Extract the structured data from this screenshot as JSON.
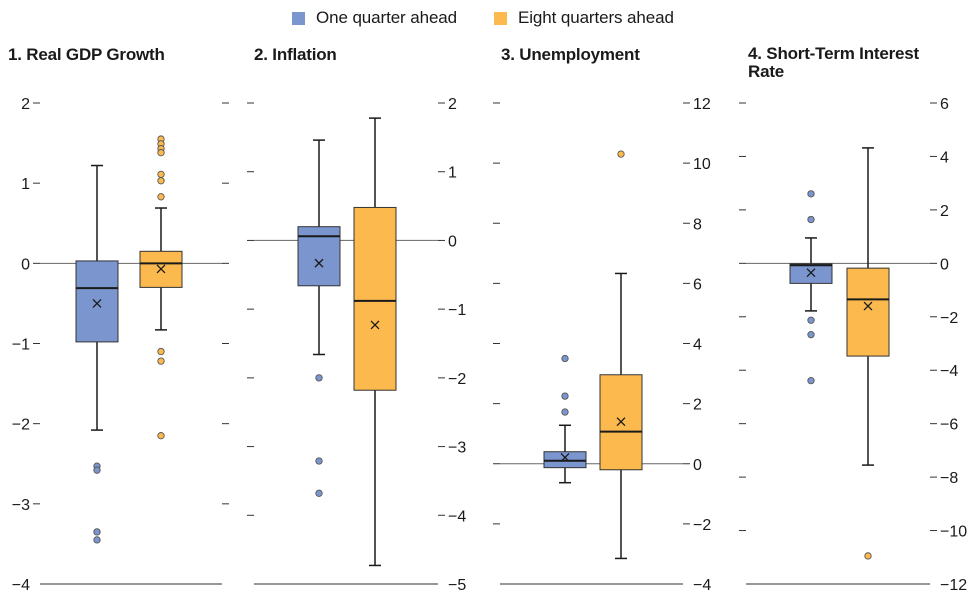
{
  "legend": [
    {
      "label": "One quarter ahead",
      "color": "#7b95cf"
    },
    {
      "label": "Eight quarters ahead",
      "color": "#fcba4e"
    }
  ],
  "colors": {
    "one_quarter": "#7b95cf",
    "eight_quarters": "#fcba4e",
    "axis": "#333333",
    "zero_line": "#666666"
  },
  "chart_data": [
    {
      "type": "box",
      "title": "1. Real GDP Growth",
      "ylim": [
        -4,
        2
      ],
      "tick_side": "left",
      "ticks": [
        2,
        1,
        0,
        -1,
        -2,
        -3,
        -4
      ],
      "tick_labels": [
        "2",
        "1",
        "0",
        "−1",
        "−2",
        "−3",
        "−4"
      ],
      "series": [
        {
          "key": "one_quarter",
          "whisker_low": -2.08,
          "q1": -0.98,
          "median": -0.31,
          "q3": 0.03,
          "whisker_high": 1.22,
          "mean": -0.5,
          "outliers": [
            -2.53,
            -2.58,
            -3.35,
            -3.45
          ]
        },
        {
          "key": "eight_quarters",
          "whisker_low": -0.83,
          "q1": -0.3,
          "median": 0.0,
          "q3": 0.15,
          "whisker_high": 0.69,
          "mean": -0.07,
          "outliers": [
            1.55,
            1.49,
            1.43,
            1.38,
            1.11,
            1.03,
            0.83,
            -1.1,
            -1.22,
            -2.15
          ]
        }
      ]
    },
    {
      "type": "box",
      "title": "2. Inflation",
      "ylim": [
        -5,
        2
      ],
      "tick_side": "right",
      "ticks": [
        2,
        1,
        0,
        -1,
        -2,
        -3,
        -4,
        -5
      ],
      "tick_labels": [
        "2",
        "1",
        "0",
        "−1",
        "−2",
        "−3",
        "−4",
        "−5"
      ],
      "series": [
        {
          "key": "one_quarter",
          "whisker_low": -1.66,
          "q1": -0.66,
          "median": 0.06,
          "q3": 0.2,
          "whisker_high": 1.46,
          "mean": -0.33,
          "outliers": [
            -2.0,
            -3.21,
            -3.68
          ]
        },
        {
          "key": "eight_quarters",
          "whisker_low": -4.73,
          "q1": -2.18,
          "median": -0.88,
          "q3": 0.48,
          "whisker_high": 1.78,
          "mean": -1.23,
          "outliers": []
        }
      ]
    },
    {
      "type": "box",
      "title": "3. Unemployment",
      "ylim": [
        -4,
        12
      ],
      "tick_side": "right",
      "ticks": [
        12,
        10,
        8,
        6,
        4,
        2,
        0,
        -2,
        -4
      ],
      "tick_labels": [
        "12",
        "10",
        "8",
        "6",
        "4",
        "2",
        "0",
        "−2",
        "−4"
      ],
      "series": [
        {
          "key": "one_quarter",
          "whisker_low": -0.63,
          "q1": -0.13,
          "median": 0.1,
          "q3": 0.4,
          "whisker_high": 1.28,
          "mean": 0.21,
          "outliers": [
            3.5,
            2.25,
            1.72
          ]
        },
        {
          "key": "eight_quarters",
          "whisker_low": -3.15,
          "q1": -0.2,
          "median": 1.07,
          "q3": 2.96,
          "whisker_high": 6.33,
          "mean": 1.4,
          "outliers": [
            10.3
          ]
        }
      ]
    },
    {
      "type": "box",
      "title": "4. Short-Term Interest\nRate",
      "ylim": [
        -12,
        6
      ],
      "tick_side": "right",
      "ticks": [
        6,
        4,
        2,
        0,
        -2,
        -4,
        -6,
        -8,
        -10,
        -12
      ],
      "tick_labels": [
        "6",
        "4",
        "2",
        "0",
        "−2",
        "−4",
        "−6",
        "−8",
        "−10",
        "−12"
      ],
      "series": [
        {
          "key": "one_quarter",
          "whisker_low": -1.78,
          "q1": -0.75,
          "median": -0.07,
          "q3": -0.02,
          "whisker_high": 0.95,
          "mean": -0.35,
          "outliers": [
            2.6,
            1.64,
            -2.13,
            -2.67,
            -4.39
          ]
        },
        {
          "key": "eight_quarters",
          "whisker_low": -7.55,
          "q1": -3.47,
          "median": -1.35,
          "q3": -0.18,
          "whisker_high": 4.32,
          "mean": -1.6,
          "outliers": [
            -10.95
          ]
        }
      ]
    }
  ]
}
